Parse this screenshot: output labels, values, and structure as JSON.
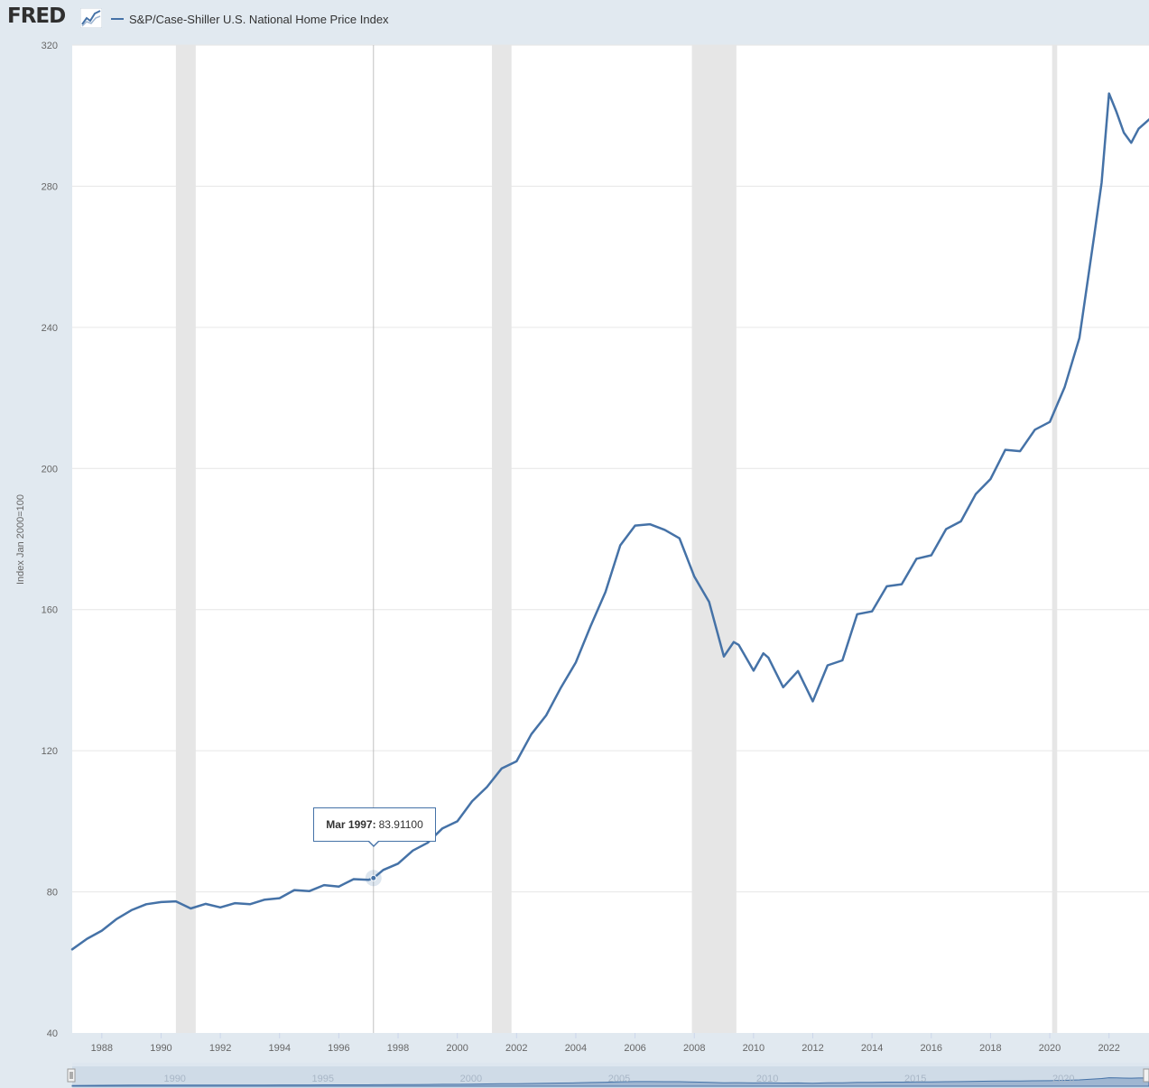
{
  "header": {
    "logo_text": "FRED",
    "logo_icon": "line-chart-icon"
  },
  "colors": {
    "series": "#4572a7",
    "recession": "#e6e6e6",
    "grid": "#e6e6e6",
    "background": "#e1e9f0",
    "plot_background": "#ffffff"
  },
  "tooltip": {
    "date": "Mar 1997:",
    "value": "83.91100"
  },
  "chart_data": {
    "type": "line",
    "title": "",
    "xlabel": "",
    "ylabel": "Index Jan 2000=100",
    "xlim": [
      1987.0,
      2023.35
    ],
    "ylim": [
      40,
      320
    ],
    "y_ticks": [
      40,
      80,
      120,
      160,
      200,
      240,
      280,
      320
    ],
    "x_ticks": [
      1988,
      1990,
      1992,
      1994,
      1996,
      1998,
      2000,
      2002,
      2004,
      2006,
      2008,
      2010,
      2012,
      2014,
      2016,
      2018,
      2020,
      2022
    ],
    "navigator_ticks": [
      1990,
      1995,
      2000,
      2005,
      2010,
      2015,
      2020
    ],
    "grid": true,
    "legend": "top-left",
    "series": [
      {
        "name": "S&P/Case-Shiller U.S. National Home Price Index",
        "x": [
          1987.0,
          1987.5,
          1988.0,
          1988.5,
          1989.0,
          1989.5,
          1990.0,
          1990.5,
          1991.0,
          1991.5,
          1992.0,
          1992.5,
          1993.0,
          1993.5,
          1994.0,
          1994.5,
          1995.0,
          1995.5,
          1996.0,
          1996.5,
          1997.0,
          1997.17,
          1997.5,
          1998.0,
          1998.5,
          1999.0,
          1999.5,
          2000.0,
          2000.5,
          2001.0,
          2001.5,
          2002.0,
          2002.5,
          2003.0,
          2003.5,
          2004.0,
          2004.5,
          2005.0,
          2005.5,
          2006.0,
          2006.5,
          2007.0,
          2007.5,
          2008.0,
          2008.5,
          2009.0,
          2009.33,
          2009.5,
          2010.0,
          2010.33,
          2010.5,
          2011.0,
          2011.5,
          2012.0,
          2012.5,
          2013.0,
          2013.5,
          2014.0,
          2014.5,
          2015.0,
          2015.5,
          2016.0,
          2016.5,
          2017.0,
          2017.5,
          2018.0,
          2018.5,
          2019.0,
          2019.5,
          2020.0,
          2020.5,
          2021.0,
          2021.5,
          2021.75,
          2022.0,
          2022.25,
          2022.5,
          2022.75,
          2023.0,
          2023.35
        ],
        "values": [
          63.7,
          66.7,
          69.0,
          72.3,
          74.8,
          76.5,
          77.1,
          77.3,
          75.3,
          76.6,
          75.6,
          76.8,
          76.5,
          77.8,
          78.2,
          80.5,
          80.2,
          81.9,
          81.5,
          83.6,
          83.4,
          83.911,
          86.2,
          88.0,
          91.7,
          93.9,
          98.0,
          100.0,
          105.7,
          109.7,
          115.0,
          117.0,
          124.7,
          130.0,
          137.9,
          145.0,
          155.3,
          165.0,
          178.2,
          183.8,
          184.2,
          182.6,
          180.2,
          169.4,
          162.2,
          146.7,
          150.8,
          150.0,
          142.7,
          147.6,
          146.4,
          138.0,
          142.6,
          134.0,
          144.2,
          145.6,
          158.7,
          159.5,
          166.6,
          167.2,
          174.4,
          175.4,
          182.8,
          185.0,
          192.7,
          197.0,
          205.3,
          204.9,
          211.0,
          213.2,
          223.0,
          237.0,
          266.0,
          281.0,
          306.3,
          301.1,
          295.2,
          292.3,
          296.3,
          298.9
        ]
      }
    ],
    "recessions": [
      [
        1990.5,
        1991.17
      ],
      [
        2001.17,
        2001.83
      ],
      [
        2007.92,
        2009.42
      ],
      [
        2020.08,
        2020.25
      ]
    ],
    "tooltip_point": {
      "x": 1997.17,
      "y": 83.911
    }
  }
}
